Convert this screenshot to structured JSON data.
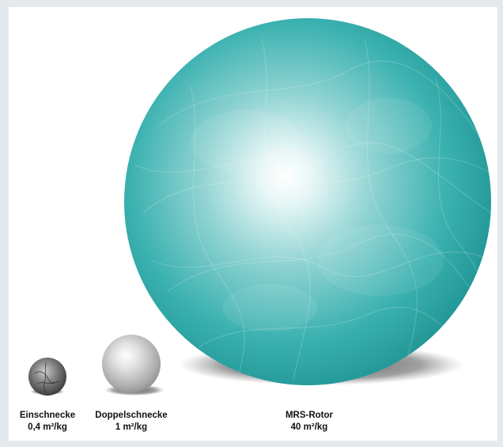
{
  "spheres": [
    {
      "name": "Einschnecke",
      "value_label": "0,4 m²/kg",
      "specific_surface_m2_per_kg": 0.4,
      "color": "#6a6a6a"
    },
    {
      "name": "Doppelschnecke",
      "value_label": "1 m²/kg",
      "specific_surface_m2_per_kg": 1,
      "color": "#b8b8b8"
    },
    {
      "name": "MRS-Rotor",
      "value_label": "40 m²/kg",
      "specific_surface_m2_per_kg": 40,
      "color": "#2aa7a6"
    }
  ]
}
